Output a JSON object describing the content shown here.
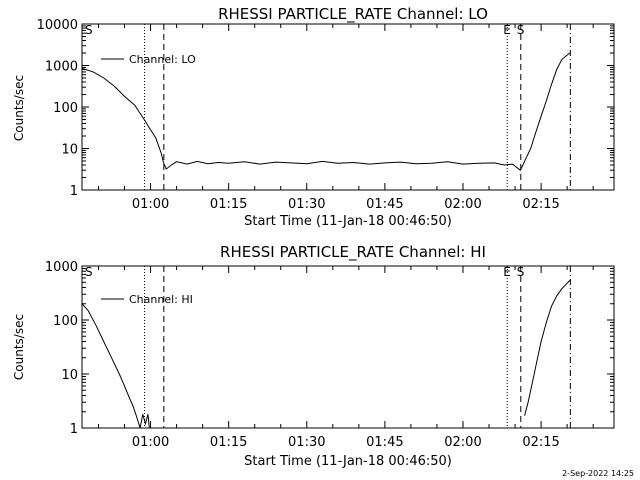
{
  "footer_timestamp": "2-Sep-2022 14:25",
  "chart_data": [
    {
      "type": "line",
      "title": "RHESSI PARTICLE_RATE Channel: LO",
      "xlabel": "Start Time (11-Jan-18 00:46:50)",
      "ylabel": "Counts/sec",
      "yscale": "log",
      "ylim": [
        1,
        10000
      ],
      "y_ticks": [
        {
          "value": 1,
          "label": "1"
        },
        {
          "value": 10,
          "label": "10"
        },
        {
          "value": 100,
          "label": "100"
        },
        {
          "value": 1000,
          "label": "1000"
        },
        {
          "value": 10000,
          "label": "10000"
        }
      ],
      "xlim": [
        "00:46:50",
        "02:29:00"
      ],
      "x_ticks": [
        "01:00",
        "01:15",
        "01:30",
        "01:45",
        "02:00",
        "02:15"
      ],
      "legend": {
        "position": "top-left",
        "entries": [
          "Channel: LO"
        ]
      },
      "markers": [
        {
          "time": "00:46:50",
          "style": "dotted",
          "label": "S"
        },
        {
          "time": "00:58:51",
          "style": "dotted",
          "label": ""
        },
        {
          "time": "01:02:33",
          "style": "dashed",
          "label": ""
        },
        {
          "time": "02:08:30",
          "style": "dotted",
          "label": "E"
        },
        {
          "time": "02:11:06",
          "style": "dashed",
          "label": "S"
        },
        {
          "time": "02:20:37",
          "style": "dashdot",
          "label": ""
        }
      ],
      "series": [
        {
          "name": "Channel: LO",
          "x": [
            "00:46:50",
            "00:49:00",
            "00:51:00",
            "00:53:00",
            "00:55:00",
            "00:57:00",
            "00:58:00",
            "00:59:00",
            "01:00:00",
            "01:01:00",
            "01:02:00",
            "01:02:30",
            "01:03:00",
            "01:04:00",
            "01:05:00",
            "01:07:00",
            "01:09:00",
            "01:11:00",
            "01:13:00",
            "01:15:00",
            "01:18:00",
            "01:21:00",
            "01:24:00",
            "01:27:00",
            "01:30:00",
            "01:33:00",
            "01:36:00",
            "01:39:00",
            "01:42:00",
            "01:45:00",
            "01:48:00",
            "01:51:00",
            "01:54:00",
            "01:57:00",
            "02:00:00",
            "02:03:00",
            "02:06:00",
            "02:08:00",
            "02:09:30",
            "02:11:00",
            "02:11:30",
            "02:12:00",
            "02:13:00",
            "02:14:00",
            "02:15:00",
            "02:16:00",
            "02:17:00",
            "02:18:00",
            "02:19:00",
            "02:20:30"
          ],
          "values": [
            850,
            700,
            500,
            320,
            180,
            110,
            70,
            45,
            28,
            18,
            8,
            4.5,
            3.2,
            4,
            4.8,
            4.2,
            4.9,
            4.3,
            4.6,
            4.4,
            4.8,
            4.2,
            4.7,
            4.5,
            4.3,
            4.9,
            4.4,
            4.6,
            4.2,
            4.5,
            4.7,
            4.3,
            4.4,
            4.8,
            4.2,
            4.4,
            4.5,
            4,
            4.2,
            3,
            4,
            5.5,
            10,
            25,
            60,
            140,
            350,
            800,
            1400,
            2000
          ]
        }
      ]
    },
    {
      "type": "line",
      "title": "RHESSI PARTICLE_RATE Channel: HI",
      "xlabel": "Start Time (11-Jan-18 00:46:50)",
      "ylabel": "Counts/sec",
      "yscale": "log",
      "ylim": [
        1,
        1000
      ],
      "y_ticks": [
        {
          "value": 1,
          "label": "1"
        },
        {
          "value": 10,
          "label": "10"
        },
        {
          "value": 100,
          "label": "100"
        },
        {
          "value": 1000,
          "label": "1000"
        }
      ],
      "xlim": [
        "00:46:50",
        "02:29:00"
      ],
      "x_ticks": [
        "01:00",
        "01:15",
        "01:30",
        "01:45",
        "02:00",
        "02:15"
      ],
      "legend": {
        "position": "top-left",
        "entries": [
          "Channel: HI"
        ]
      },
      "markers": [
        {
          "time": "00:46:50",
          "style": "dotted",
          "label": "S"
        },
        {
          "time": "00:58:51",
          "style": "dotted",
          "label": ""
        },
        {
          "time": "01:02:33",
          "style": "dashed",
          "label": ""
        },
        {
          "time": "02:08:30",
          "style": "dotted",
          "label": "E"
        },
        {
          "time": "02:11:06",
          "style": "dashed",
          "label": "S"
        },
        {
          "time": "02:20:37",
          "style": "dashdot",
          "label": ""
        }
      ],
      "series": [
        {
          "name": "Channel: HI",
          "x": [
            "00:46:50",
            "00:48:00",
            "00:49:30",
            "00:51:00",
            "00:52:30",
            "00:54:00",
            "00:55:00",
            "00:56:00",
            "00:56:40",
            "00:57:20",
            "00:58:00",
            "00:58:30",
            "00:59:00",
            "00:59:30",
            "00:59:45"
          ],
          "values": [
            200,
            150,
            80,
            40,
            20,
            10,
            6,
            3.5,
            2.5,
            1.6,
            1,
            1.8,
            1.2,
            1.8,
            1
          ],
          "segment2_x": [
            "02:11:50",
            "02:12:30",
            "02:13:00",
            "02:13:40",
            "02:14:20",
            "02:15:00",
            "02:16:00",
            "02:17:00",
            "02:18:00",
            "02:19:00",
            "02:20:00",
            "02:20:37"
          ],
          "segment2_values": [
            1.7,
            3,
            5,
            10,
            20,
            40,
            90,
            180,
            280,
            380,
            480,
            550
          ]
        }
      ]
    }
  ]
}
